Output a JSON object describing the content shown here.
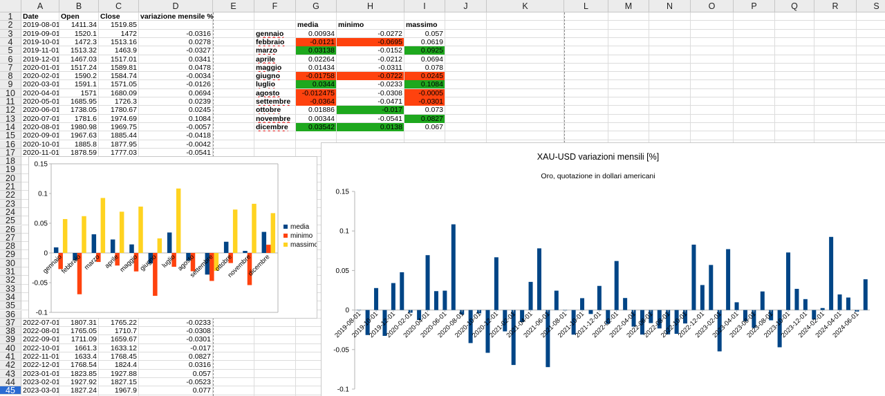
{
  "columns": [
    "A",
    "B",
    "C",
    "D",
    "E",
    "F",
    "G",
    "H",
    "I",
    "J",
    "K",
    "L",
    "M",
    "N",
    "O",
    "P",
    "Q",
    "R",
    "S"
  ],
  "rows": [
    "1",
    "2",
    "3",
    "4",
    "5",
    "6",
    "7",
    "8",
    "9",
    "10",
    "11",
    "12",
    "13",
    "14",
    "15",
    "16",
    "17",
    "18",
    "19",
    "20",
    "21",
    "22",
    "23",
    "24",
    "25",
    "26",
    "27",
    "28",
    "29",
    "30",
    "31",
    "32",
    "33",
    "34",
    "35",
    "36",
    "37",
    "38",
    "39",
    "40",
    "41",
    "42",
    "43",
    "44",
    "45"
  ],
  "active_row": "45",
  "headers": {
    "date": "Date",
    "open": "Open",
    "close": "Close",
    "variation": "variazione mensile %"
  },
  "data_rows_top": [
    {
      "date": "2019-08-01",
      "open": "1411.34",
      "close": "1519.85",
      "var": ""
    },
    {
      "date": "2019-09-01",
      "open": "1520.1",
      "close": "1472",
      "var": "-0.0316"
    },
    {
      "date": "2019-10-01",
      "open": "1472.3",
      "close": "1513.16",
      "var": "0.0278"
    },
    {
      "date": "2019-11-01",
      "open": "1513.32",
      "close": "1463.9",
      "var": "-0.0327"
    },
    {
      "date": "2019-12-01",
      "open": "1467.03",
      "close": "1517.01",
      "var": "0.0341"
    },
    {
      "date": "2020-01-01",
      "open": "1517.24",
      "close": "1589.81",
      "var": "0.0478"
    },
    {
      "date": "2020-02-01",
      "open": "1590.2",
      "close": "1584.74",
      "var": "-0.0034"
    },
    {
      "date": "2020-03-01",
      "open": "1591.1",
      "close": "1571.05",
      "var": "-0.0126"
    },
    {
      "date": "2020-04-01",
      "open": "1571",
      "close": "1680.09",
      "var": "0.0694"
    },
    {
      "date": "2020-05-01",
      "open": "1685.95",
      "close": "1726.3",
      "var": "0.0239"
    },
    {
      "date": "2020-06-01",
      "open": "1738.05",
      "close": "1780.67",
      "var": "0.0245"
    },
    {
      "date": "2020-07-01",
      "open": "1781.6",
      "close": "1974.69",
      "var": "0.1084"
    },
    {
      "date": "2020-08-01",
      "open": "1980.98",
      "close": "1969.75",
      "var": "-0.0057"
    },
    {
      "date": "2020-09-01",
      "open": "1967.63",
      "close": "1885.44",
      "var": "-0.0418"
    },
    {
      "date": "2020-10-01",
      "open": "1885.8",
      "close": "1877.95",
      "var": "-0.0042"
    },
    {
      "date": "2020-11-01",
      "open": "1878.59",
      "close": "1777.03",
      "var": "-0.0541"
    }
  ],
  "data_rows_bottom": [
    {
      "date": "2022-07-01",
      "open": "1807.31",
      "close": "1765.22",
      "var": "-0.0233"
    },
    {
      "date": "2022-08-01",
      "open": "1765.05",
      "close": "1710.7",
      "var": "-0.0308"
    },
    {
      "date": "2022-09-01",
      "open": "1711.09",
      "close": "1659.67",
      "var": "-0.0301"
    },
    {
      "date": "2022-10-01",
      "open": "1661.3",
      "close": "1633.12",
      "var": "-0.017"
    },
    {
      "date": "2022-11-01",
      "open": "1633.4",
      "close": "1768.45",
      "var": "0.0827"
    },
    {
      "date": "2022-12-01",
      "open": "1768.54",
      "close": "1824.4",
      "var": "0.0316"
    },
    {
      "date": "2023-01-01",
      "open": "1823.85",
      "close": "1927.88",
      "var": "0.057"
    },
    {
      "date": "2023-02-01",
      "open": "1927.92",
      "close": "1827.15",
      "var": "-0.0523"
    },
    {
      "date": "2023-03-01",
      "open": "1827.24",
      "close": "1967.9",
      "var": "0.077"
    }
  ],
  "stats_headers": {
    "media": "media",
    "minimo": "minimo",
    "massimo": "massimo"
  },
  "stats_rows": [
    {
      "month": "gennaio",
      "media": "0.00934",
      "minimo": "-0.0272",
      "massimo": "0.057",
      "media_hl": "",
      "minimo_hl": "",
      "massimo_hl": ""
    },
    {
      "month": "febbraio",
      "media": "-0.0121",
      "minimo": "-0.0695",
      "massimo": "0.0619",
      "media_hl": "red",
      "minimo_hl": "red",
      "massimo_hl": ""
    },
    {
      "month": "marzo",
      "media": "0.03138",
      "minimo": "-0.0152",
      "massimo": "0.0925",
      "media_hl": "green",
      "minimo_hl": "",
      "massimo_hl": "green"
    },
    {
      "month": "aprile",
      "media": "0.02264",
      "minimo": "-0.0212",
      "massimo": "0.0694",
      "media_hl": "",
      "minimo_hl": "",
      "massimo_hl": ""
    },
    {
      "month": "maggio",
      "media": "0.01434",
      "minimo": "-0.0311",
      "massimo": "0.078",
      "media_hl": "",
      "minimo_hl": "",
      "massimo_hl": ""
    },
    {
      "month": "giugno",
      "media": "-0.01758",
      "minimo": "-0.0722",
      "massimo": "0.0245",
      "media_hl": "red",
      "minimo_hl": "red",
      "massimo_hl": "red"
    },
    {
      "month": "luglio",
      "media": "0.0344",
      "minimo": "-0.0233",
      "massimo": "0.1084",
      "media_hl": "green",
      "minimo_hl": "",
      "massimo_hl": "green"
    },
    {
      "month": "agosto",
      "media": "-0.012475",
      "minimo": "-0.0308",
      "massimo": "-0.0005",
      "media_hl": "red",
      "minimo_hl": "",
      "massimo_hl": "red"
    },
    {
      "month": "settembre",
      "media": "-0.0364",
      "minimo": "-0.0471",
      "massimo": "-0.0301",
      "media_hl": "red",
      "minimo_hl": "",
      "massimo_hl": "red"
    },
    {
      "month": "ottobre",
      "media": "0.01886",
      "minimo": "-0.017",
      "massimo": "0.073",
      "media_hl": "",
      "minimo_hl": "green",
      "massimo_hl": ""
    },
    {
      "month": "novembre",
      "media": "0.00344",
      "minimo": "-0.0541",
      "massimo": "0.0827",
      "media_hl": "",
      "minimo_hl": "",
      "massimo_hl": "green"
    },
    {
      "month": "dicembre",
      "media": "0.03542",
      "minimo": "0.0138",
      "massimo": "0.067",
      "media_hl": "green",
      "minimo_hl": "green",
      "massimo_hl": ""
    }
  ],
  "colors": {
    "green": "#1ea81e",
    "red": "#ff420e",
    "media": "#004586",
    "minimo": "#ff420e",
    "massimo": "#ffd320",
    "header_bg": "#ececec",
    "active": "#2a6bd2"
  },
  "chart_data": [
    {
      "type": "bar",
      "title": "",
      "categories": [
        "gennaio",
        "febbraio",
        "marzo",
        "aprile",
        "maggio",
        "giugno",
        "luglio",
        "agosto",
        "settembre",
        "ottobre",
        "novembre",
        "dicembre"
      ],
      "series": [
        {
          "name": "media",
          "values": [
            0.00934,
            -0.0121,
            0.03138,
            0.02264,
            0.01434,
            -0.01758,
            0.0344,
            -0.012475,
            -0.0364,
            0.01886,
            0.00344,
            0.03542
          ]
        },
        {
          "name": "minimo",
          "values": [
            -0.0272,
            -0.0695,
            -0.0152,
            -0.0212,
            -0.0311,
            -0.0722,
            -0.0233,
            -0.0308,
            -0.0471,
            -0.017,
            -0.0541,
            0.0138
          ]
        },
        {
          "name": "massimo",
          "values": [
            0.057,
            0.0619,
            0.0925,
            0.0694,
            0.078,
            0.0245,
            0.1084,
            -0.0005,
            -0.0301,
            0.073,
            0.0827,
            0.067
          ]
        }
      ],
      "ylim": [
        -0.1,
        0.15
      ],
      "yticks": [
        "0.15",
        "0.1",
        "0.05",
        "0",
        "-0.05",
        "-0.1"
      ],
      "grid": false,
      "legend": "right"
    },
    {
      "type": "bar",
      "title": "XAU-USD variazioni mensili [%]",
      "subtitle": "Oro, quotazione in dollari americani",
      "x": [
        "2019-08-01",
        "2019-09-01",
        "2019-10-01",
        "2019-11-01",
        "2019-12-01",
        "2020-01-01",
        "2020-02-01",
        "2020-03-01",
        "2020-04-01",
        "2020-05-01",
        "2020-06-01",
        "2020-07-01",
        "2020-08-01",
        "2020-09-01",
        "2020-10-01",
        "2020-11-01",
        "2020-12-01",
        "2021-01-01",
        "2021-02-01",
        "2021-03-01",
        "2021-04-01",
        "2021-05-01",
        "2021-06-01",
        "2021-07-01",
        "2021-08-01",
        "2021-09-01",
        "2021-10-01",
        "2021-11-01",
        "2021-12-01",
        "2022-01-01",
        "2022-02-01",
        "2022-03-01",
        "2022-04-01",
        "2022-05-01",
        "2022-06-01",
        "2022-07-01",
        "2022-08-01",
        "2022-09-01",
        "2022-10-01",
        "2022-11-01",
        "2022-12-01",
        "2023-01-01",
        "2023-02-01",
        "2023-03-01",
        "2023-04-01",
        "2023-05-01",
        "2023-06-01",
        "2023-07-01",
        "2023-08-01",
        "2023-09-01",
        "2023-10-01",
        "2023-11-01",
        "2023-12-01",
        "2024-01-01",
        "2024-02-01",
        "2024-03-01",
        "2024-04-01",
        "2024-05-01",
        "2024-06-01",
        "2024-07-01"
      ],
      "xtick_labels": [
        "2019-08-01",
        "2019-10-01",
        "2019-12-01",
        "2020-02-01",
        "2020-04-01",
        "2020-06-01",
        "2020-08-01",
        "2020-10-01",
        "2020-12-01",
        "2021-02-01",
        "2021-04-01",
        "2021-06-01",
        "2021-08-01",
        "2021-10-01",
        "2021-12-01",
        "2022-02-01",
        "2022-04-01",
        "2022-06-01",
        "2022-08-01",
        "2022-10-01",
        "2022-12-01",
        "2023-02-01",
        "2023-04-01",
        "2023-06-01",
        "2023-08-01",
        "2023-10-01",
        "2023-12-01",
        "2024-02-01",
        "2024-04-01",
        "2024-06-01"
      ],
      "series": [
        {
          "values": [
            0,
            -0.0316,
            0.0278,
            -0.0327,
            0.0341,
            0.0478,
            -0.0034,
            -0.0126,
            0.0694,
            0.0239,
            0.0245,
            0.1084,
            -0.0057,
            -0.0418,
            -0.0042,
            -0.0541,
            0.0667,
            -0.027,
            -0.0695,
            -0.0152,
            0.0356,
            0.078,
            -0.0722,
            0.0245,
            -0.0005,
            -0.0311,
            0.015,
            -0.005,
            0.0305,
            -0.0175,
            0.062,
            0.0152,
            -0.021,
            -0.031,
            -0.0165,
            -0.0233,
            -0.0308,
            -0.0301,
            -0.017,
            0.0827,
            0.0316,
            0.057,
            -0.0523,
            0.077,
            0.0098,
            -0.014,
            -0.0225,
            0.0235,
            -0.013,
            -0.0471,
            0.0728,
            0.0268,
            0.0138,
            -0.012,
            0.0025,
            0.0925,
            0.0197,
            0.0158,
            -0.002,
            0.0389
          ]
        }
      ],
      "ylim": [
        -0.1,
        0.15
      ],
      "yticks": [
        "0.15",
        "0.1",
        "0.05",
        "0",
        "-0.05",
        "-0.1"
      ],
      "grid": false,
      "legend": "none"
    }
  ]
}
